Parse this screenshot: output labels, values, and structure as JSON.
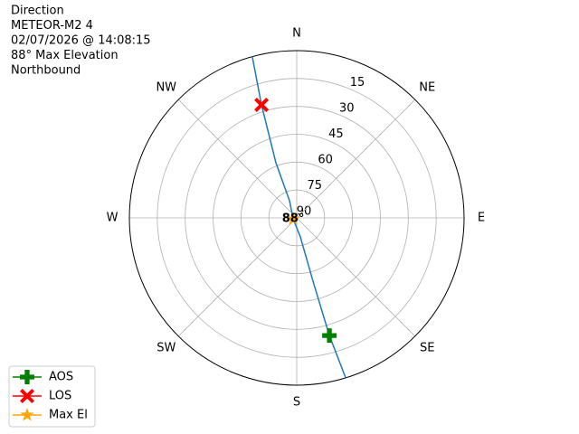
{
  "chart_data": {
    "type": "polar",
    "annotation": [
      "Direction",
      "METEOR-M2 4",
      "02/07/2026 @ 14:08:15",
      "88° Max Elevation",
      "Northbound"
    ],
    "rlim": [
      90,
      0
    ],
    "rticks": [
      15,
      30,
      45,
      60,
      75,
      90
    ],
    "thetaticks": [
      {
        "value": 0,
        "label": "N"
      },
      {
        "value": 45,
        "label": "NE"
      },
      {
        "value": 90,
        "label": "E"
      },
      {
        "value": 135,
        "label": "SE"
      },
      {
        "value": 180,
        "label": "S"
      },
      {
        "value": 225,
        "label": "SW"
      },
      {
        "value": 270,
        "label": "W"
      },
      {
        "value": 315,
        "label": "NW"
      }
    ],
    "grid": true,
    "legend": "lower left",
    "track": {
      "color": "#1f77b4",
      "theta": [
        163,
        164.5,
        165.6,
        169.2,
        254,
        337.2,
        339.3,
        342.7,
        344.6
      ],
      "values": [
        0,
        24.3,
        54.8,
        79.6,
        88,
        80,
        58.3,
        26.3,
        0
      ]
    },
    "series": [
      {
        "name": "AOS",
        "color": "#008000",
        "marker": "plus",
        "theta": [
          164.5
        ],
        "values": [
          24.3
        ]
      },
      {
        "name": "LOS",
        "color": "#ff0000",
        "marker": "x",
        "theta": [
          342.7
        ],
        "values": [
          26.3
        ]
      },
      {
        "name": "Max El",
        "color": "#ffa500",
        "marker": "star",
        "theta": [
          254
        ],
        "values": [
          88
        ],
        "value_labels": [
          "88°"
        ]
      }
    ]
  }
}
